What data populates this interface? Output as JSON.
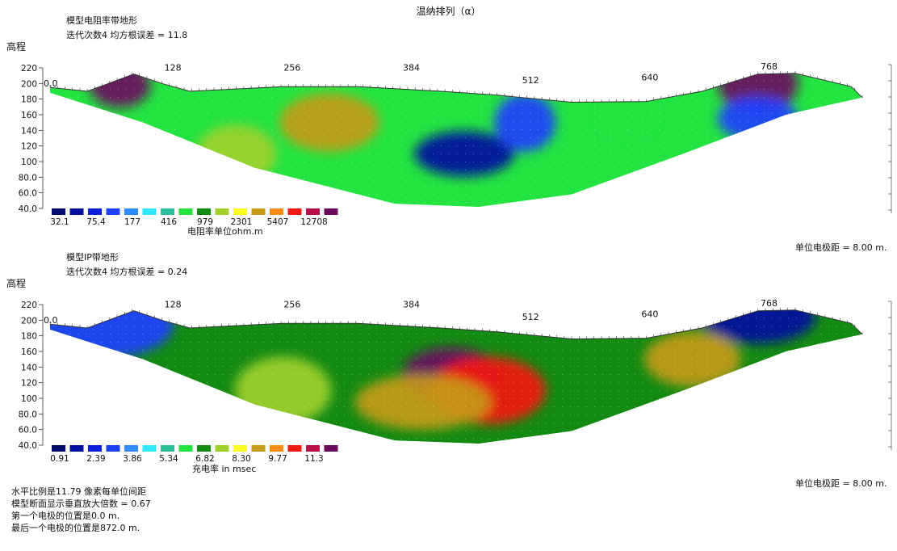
{
  "title": "温纳排列（α）",
  "panels": [
    {
      "heading1": "模型电阻率带地形",
      "heading2": "迭代次数4 均方根误差 = 11.8",
      "elev_label": "高程",
      "y_ticks": [
        "220",
        "200",
        "180",
        "160",
        "140",
        "120",
        "100",
        "80.0",
        "60.0",
        "40.0"
      ],
      "x_ticks": [
        "0.0",
        "128",
        "256",
        "384",
        "512",
        "640",
        "768"
      ],
      "legend_values": [
        "32.1",
        "75.4",
        "177",
        "416",
        "979",
        "2301",
        "5407",
        "12708"
      ],
      "unit_label": "电阻率单位ohm.m",
      "electrode_spacing": "单位电极距 = 8.00 m."
    },
    {
      "heading1": "模型IP带地形",
      "heading2": "迭代次数4 均方根误差 = 0.24",
      "elev_label": "高程",
      "y_ticks": [
        "220",
        "200",
        "180",
        "160",
        "140",
        "120",
        "100",
        "80.0",
        "60.0",
        "40.0"
      ],
      "x_ticks": [
        "0.0",
        "128",
        "256",
        "384",
        "512",
        "640",
        "768"
      ],
      "legend_values": [
        "0.91",
        "2.39",
        "3.86",
        "5.34",
        "6.82",
        "8.30",
        "9.77",
        "11.3"
      ],
      "unit_label": "充电率 in msec",
      "electrode_spacing": "单位电极距 = 8.00 m."
    }
  ],
  "footer": [
    "水平比例是11.79 像素每单位间距",
    "模型断面显示垂直放大倍数 = 0.67",
    "第一个电极的位置是0.0  m.",
    "最后一个电极的位置是872.0 m."
  ],
  "palette": [
    "#000a6e",
    "#00119e",
    "#0a20d8",
    "#1e40ff",
    "#2f8bff",
    "#30e8ff",
    "#2bbf9a",
    "#22e340",
    "#138a12",
    "#9fd02b",
    "#ffff20",
    "#c49a18",
    "#ff8c10",
    "#f21a10",
    "#b80e46",
    "#6a0a5e"
  ],
  "chart_data": [
    {
      "type": "heatmap",
      "title": "模型电阻率带地形",
      "xlabel": "",
      "ylabel": "高程",
      "x_ticks": [
        0,
        128,
        256,
        384,
        512,
        640,
        768
      ],
      "xlim": [
        0,
        872
      ],
      "ylim": [
        40,
        220
      ],
      "surface_topography": [
        [
          0,
          195
        ],
        [
          40,
          190
        ],
        [
          90,
          212
        ],
        [
          120,
          200
        ],
        [
          150,
          190
        ],
        [
          250,
          196
        ],
        [
          330,
          196
        ],
        [
          420,
          190
        ],
        [
          480,
          185
        ],
        [
          560,
          176
        ],
        [
          640,
          177
        ],
        [
          700,
          190
        ],
        [
          760,
          212
        ],
        [
          800,
          213
        ],
        [
          860,
          196
        ],
        [
          872,
          182
        ]
      ],
      "model_bottom": [
        [
          0,
          188
        ],
        [
          100,
          150
        ],
        [
          220,
          92
        ],
        [
          370,
          46
        ],
        [
          460,
          42
        ],
        [
          560,
          58
        ],
        [
          680,
          110
        ],
        [
          790,
          160
        ],
        [
          872,
          182
        ]
      ],
      "legend": {
        "values": [
          32.1,
          75.4,
          177,
          416,
          979,
          2301,
          5407,
          12708
        ],
        "unit": "ohm.m"
      },
      "zones": [
        {
          "x": 75,
          "y": 198,
          "value": 12708
        },
        {
          "x": 760,
          "y": 200,
          "value": 12708
        },
        {
          "x": 445,
          "y": 110,
          "value": 32.1
        },
        {
          "x": 510,
          "y": 150,
          "value": 75.4
        },
        {
          "x": 760,
          "y": 155,
          "value": 75.4
        },
        {
          "x": 300,
          "y": 150,
          "value": 2301
        },
        {
          "x": 620,
          "y": 160,
          "value": 416
        },
        {
          "x": 200,
          "y": 110,
          "value": 979
        }
      ]
    },
    {
      "type": "heatmap",
      "title": "模型IP带地形",
      "xlabel": "",
      "ylabel": "高程",
      "x_ticks": [
        0,
        128,
        256,
        384,
        512,
        640,
        768
      ],
      "xlim": [
        0,
        872
      ],
      "ylim": [
        40,
        220
      ],
      "surface_topography": [
        [
          0,
          195
        ],
        [
          40,
          190
        ],
        [
          90,
          212
        ],
        [
          120,
          200
        ],
        [
          150,
          190
        ],
        [
          250,
          196
        ],
        [
          330,
          196
        ],
        [
          420,
          190
        ],
        [
          480,
          185
        ],
        [
          560,
          176
        ],
        [
          640,
          177
        ],
        [
          700,
          190
        ],
        [
          760,
          212
        ],
        [
          800,
          213
        ],
        [
          860,
          196
        ],
        [
          872,
          182
        ]
      ],
      "model_bottom": [
        [
          0,
          188
        ],
        [
          100,
          150
        ],
        [
          220,
          92
        ],
        [
          370,
          46
        ],
        [
          460,
          42
        ],
        [
          560,
          58
        ],
        [
          680,
          110
        ],
        [
          790,
          160
        ],
        [
          872,
          182
        ]
      ],
      "legend": {
        "values": [
          0.91,
          2.39,
          3.86,
          5.34,
          6.82,
          8.3,
          9.77,
          11.3
        ],
        "unit": "msec"
      },
      "zones": [
        {
          "x": 430,
          "y": 130,
          "value": 11.3
        },
        {
          "x": 470,
          "y": 110,
          "value": 9.77
        },
        {
          "x": 400,
          "y": 95,
          "value": 8.3
        },
        {
          "x": 250,
          "y": 110,
          "value": 6.82
        },
        {
          "x": 760,
          "y": 205,
          "value": 0.91
        },
        {
          "x": 60,
          "y": 195,
          "value": 2.39
        },
        {
          "x": 690,
          "y": 150,
          "value": 8.3
        }
      ]
    }
  ]
}
